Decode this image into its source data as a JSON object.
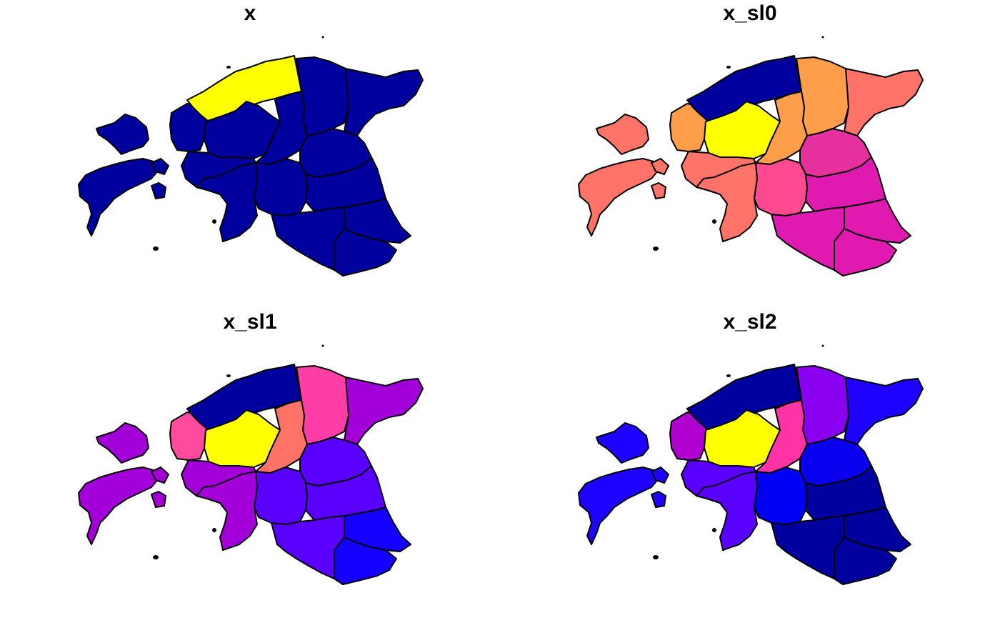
{
  "panels": [
    {
      "title": "x",
      "fills": {
        "n_coast": "#FFFF00",
        "n_central": "#00009E",
        "ne_mid": "#00009E",
        "ne_east": "#00009E",
        "west": "#00009E",
        "central": "#00009E",
        "center_east": "#00009E",
        "e_mid": "#00009E",
        "pärnu": "#00009E",
        "viljandi": "#00009E",
        "tartu": "#00009E",
        "polva": "#00009E",
        "valga": "#00009E",
        "voru": "#00009E",
        "saare": "#00009E",
        "hiiu": "#00009E"
      }
    },
    {
      "title": "x_sl0",
      "fills": {
        "n_coast": "#00009E",
        "n_central": "#FFFF00",
        "ne_mid": "#FF9E4A",
        "ne_east": "#FF7369",
        "west": "#FF9E4A",
        "central": "#FF7369",
        "center_east": "#FF9E4A",
        "e_mid": "#E6309E",
        "pärnu": "#FF7369",
        "viljandi": "#FF4A8F",
        "tartu": "#E01AB0",
        "polva": "#E01AB0",
        "valga": "#E01AB0",
        "voru": "#E01AB0",
        "saare": "#FF7369",
        "hiiu": "#FF7369"
      }
    },
    {
      "title": "x_sl1",
      "fills": {
        "n_coast": "#00009E",
        "n_central": "#FFFF00",
        "ne_mid": "#FF3DA6",
        "ne_east": "#A300D9",
        "west": "#FF4A9E",
        "central": "#A300D9",
        "center_east": "#FF7366",
        "e_mid": "#5A00FF",
        "pärnu": "#A300D9",
        "viljandi": "#5A00FF",
        "tartu": "#5A00FF",
        "polva": "#1400FF",
        "valga": "#5A00FF",
        "voru": "#1400FF",
        "saare": "#A300D9",
        "hiiu": "#A300D9"
      }
    },
    {
      "title": "x_sl2",
      "fills": {
        "n_coast": "#00009E",
        "n_central": "#FFFF00",
        "ne_mid": "#8A00F0",
        "ne_east": "#1E00FF",
        "west": "#B000D0",
        "central": "#5A00FF",
        "center_east": "#FF33A3",
        "e_mid": "#0A00F0",
        "pärnu": "#5A00FF",
        "viljandi": "#0000F5",
        "tartu": "#00009E",
        "polva": "#00009E",
        "valga": "#00009E",
        "voru": "#00009E",
        "saare": "#1E00FF",
        "hiiu": "#1E00FF"
      }
    }
  ]
}
